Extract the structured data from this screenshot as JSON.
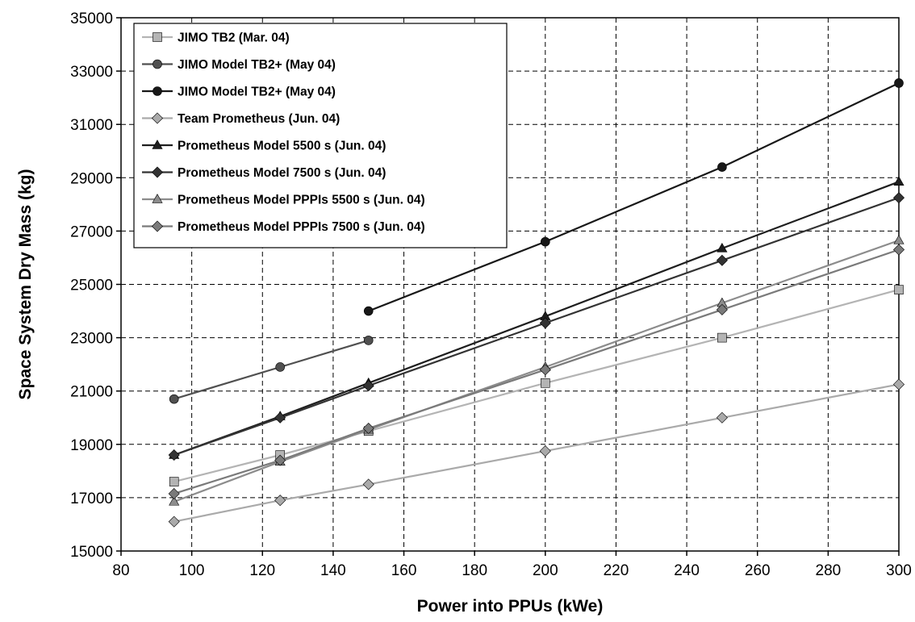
{
  "chart_data": {
    "type": "line",
    "title": "",
    "xlabel": "Power into PPUs (kWe)",
    "ylabel": "Space System Dry Mass (kg)",
    "xlim": [
      80,
      300
    ],
    "ylim": [
      15000,
      35000
    ],
    "x_ticks": [
      80,
      100,
      120,
      140,
      160,
      180,
      200,
      220,
      240,
      260,
      280,
      300
    ],
    "y_ticks": [
      15000,
      17000,
      19000,
      21000,
      23000,
      25000,
      27000,
      29000,
      31000,
      33000,
      35000
    ],
    "grid": true,
    "legend_position": "top-left",
    "series": [
      {
        "name": "JIMO TB2 (Mar. 04)",
        "color": "#b4b4b4",
        "marker": "square",
        "points": [
          [
            95,
            17600
          ],
          [
            125,
            18600
          ],
          [
            150,
            19500
          ],
          [
            200,
            21300
          ],
          [
            250,
            23000
          ],
          [
            300,
            24800
          ]
        ]
      },
      {
        "name": "JIMO Model TB2+ (May 04)",
        "color": "#505050",
        "marker": "circle",
        "points": [
          [
            95,
            20700
          ],
          [
            125,
            21900
          ],
          [
            150,
            22900
          ]
        ]
      },
      {
        "name": "JIMO Model TB2+ (May 04)",
        "color": "#181818",
        "marker": "circle",
        "points": [
          [
            150,
            24000
          ],
          [
            200,
            26600
          ],
          [
            250,
            29400
          ],
          [
            300,
            32550
          ]
        ]
      },
      {
        "name": "Team Prometheus (Jun. 04)",
        "color": "#aaaaaa",
        "marker": "diamond",
        "points": [
          [
            95,
            16100
          ],
          [
            125,
            16900
          ],
          [
            150,
            17500
          ],
          [
            200,
            18750
          ],
          [
            250,
            20000
          ],
          [
            300,
            21250
          ]
        ]
      },
      {
        "name": "Prometheus Model 5500 s (Jun. 04)",
        "color": "#1e1e1e",
        "marker": "triangle",
        "points": [
          [
            95,
            18600
          ],
          [
            125,
            20050
          ],
          [
            150,
            21300
          ],
          [
            200,
            23800
          ],
          [
            250,
            26350
          ],
          [
            300,
            28850
          ]
        ]
      },
      {
        "name": "Prometheus Model 7500 s (Jun. 04)",
        "color": "#333333",
        "marker": "diamond",
        "points": [
          [
            95,
            18600
          ],
          [
            125,
            20000
          ],
          [
            150,
            21200
          ],
          [
            200,
            23550
          ],
          [
            250,
            25900
          ],
          [
            300,
            28250
          ]
        ]
      },
      {
        "name": "Prometheus Model PPPIs 5500 s (Jun. 04)",
        "color": "#8c8c8c",
        "marker": "triangle",
        "points": [
          [
            95,
            16850
          ],
          [
            125,
            18350
          ],
          [
            150,
            19550
          ],
          [
            200,
            21900
          ],
          [
            250,
            24300
          ],
          [
            300,
            26650
          ]
        ]
      },
      {
        "name": "Prometheus Model PPPIs 7500 s (Jun. 04)",
        "color": "#7a7a7a",
        "marker": "diamond",
        "points": [
          [
            95,
            17150
          ],
          [
            125,
            18400
          ],
          [
            150,
            19600
          ],
          [
            200,
            21800
          ],
          [
            250,
            24050
          ],
          [
            300,
            26300
          ]
        ]
      }
    ]
  }
}
